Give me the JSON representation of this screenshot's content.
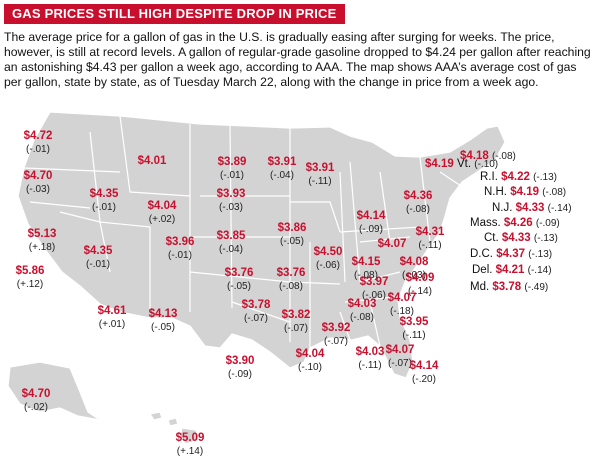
{
  "title": "GAS PRICES STILL HIGH DESPITE DROP IN PRICE",
  "description": "The average price for a gallon of gas in the U.S. is gradually easing after surging for weeks. The price, however, is still at record levels. A gallon of regular-grade gasoline dropped to $4.24 per gallon after reaching an astonishing $4.43 per gallon a week ago, according to AAA. The map shows AAA’s average cost of gas per gallon, state by state, as of Tuesday March 22, along with the change in price from a week ago.",
  "colors": {
    "accent": "#c8102e",
    "land": "#d3d3d3",
    "border": "#ffffff"
  },
  "states": [
    {
      "price": "$4.72",
      "change": "(-.01)"
    },
    {
      "price": "$4.70",
      "change": "(-.03)"
    },
    {
      "price": "$5.86",
      "change": "(+.12)"
    },
    {
      "price": "$4.35",
      "change": "(-.01)"
    },
    {
      "price": "$5.13",
      "change": "(+.18)"
    },
    {
      "price": "$4.35",
      "change": "(-.01)"
    },
    {
      "price": "$4.61",
      "change": "(+.01)"
    },
    {
      "price": "$4.01",
      "change": ""
    },
    {
      "price": "$4.04",
      "change": "(+.02)"
    },
    {
      "price": "$3.96",
      "change": "(-.01)"
    },
    {
      "price": "$4.13",
      "change": "(-.05)"
    },
    {
      "price": "$3.89",
      "change": "(-.01)"
    },
    {
      "price": "$3.93",
      "change": "(-.03)"
    },
    {
      "price": "$3.85",
      "change": "(-.04)"
    },
    {
      "price": "$3.76",
      "change": "(-.05)"
    },
    {
      "price": "$3.78",
      "change": "(-.07)"
    },
    {
      "price": "$3.90",
      "change": "(-.09)"
    },
    {
      "price": "$3.91",
      "change": "(-.04)"
    },
    {
      "price": "$3.86",
      "change": "(-.05)"
    },
    {
      "price": "$3.76",
      "change": "(-.08)"
    },
    {
      "price": "$3.82",
      "change": "(-.07)"
    },
    {
      "price": "$3.91",
      "change": "(-.11)"
    },
    {
      "price": "$4.50",
      "change": "(-.06)"
    },
    {
      "price": "$4.14",
      "change": "(-.09)"
    },
    {
      "price": "$4.15",
      "change": "(-.08)"
    },
    {
      "price": "$4.07",
      "change": ""
    },
    {
      "price": "$3.97",
      "change": "(-.06)"
    },
    {
      "price": "$4.03",
      "change": "(-.08)"
    },
    {
      "price": "$3.92",
      "change": "(-.07)"
    },
    {
      "price": "$4.04",
      "change": "(-.10)"
    },
    {
      "price": "$4.03",
      "change": "(-.11)"
    },
    {
      "price": "$4.07",
      "change": "(-.07)"
    },
    {
      "price": "$4.14",
      "change": "(-.20)"
    },
    {
      "price": "$3.95",
      "change": "(-.11)"
    },
    {
      "price": "$4.07",
      "change": "(-.18)"
    },
    {
      "price": "$4.09",
      "change": "(-.14)"
    },
    {
      "price": "$4.08",
      "change": "(-.03)"
    },
    {
      "price": "$4.31",
      "change": "(-.11)"
    },
    {
      "price": "$4.36",
      "change": "(-.08)"
    },
    {
      "price": "$4.70",
      "change": "(-.02)"
    },
    {
      "price": "$5.09",
      "change": "(+.14)"
    }
  ],
  "northeast": [
    {
      "state": "Vt.",
      "price": "$4.19",
      "change": "(-.10)"
    },
    {
      "state": "",
      "price": "$4.18",
      "change": "(-.08)"
    },
    {
      "state": "R.I.",
      "price": "$4.22",
      "change": "(-.13)"
    },
    {
      "state": "N.H.",
      "price": "$4.19",
      "change": "(-.08)"
    },
    {
      "state": "N.J.",
      "price": "$4.33",
      "change": "(-.14)"
    },
    {
      "state": "Mass.",
      "price": "$4.26",
      "change": "(-.09)"
    },
    {
      "state": "Ct.",
      "price": "$4.33",
      "change": "(-.13)"
    },
    {
      "state": "D.C.",
      "price": "$4.37",
      "change": "(-.13)"
    },
    {
      "state": "Del.",
      "price": "$4.21",
      "change": "(-.14)"
    },
    {
      "state": "Md.",
      "price": "$3.78",
      "change": "(-.49)"
    }
  ]
}
